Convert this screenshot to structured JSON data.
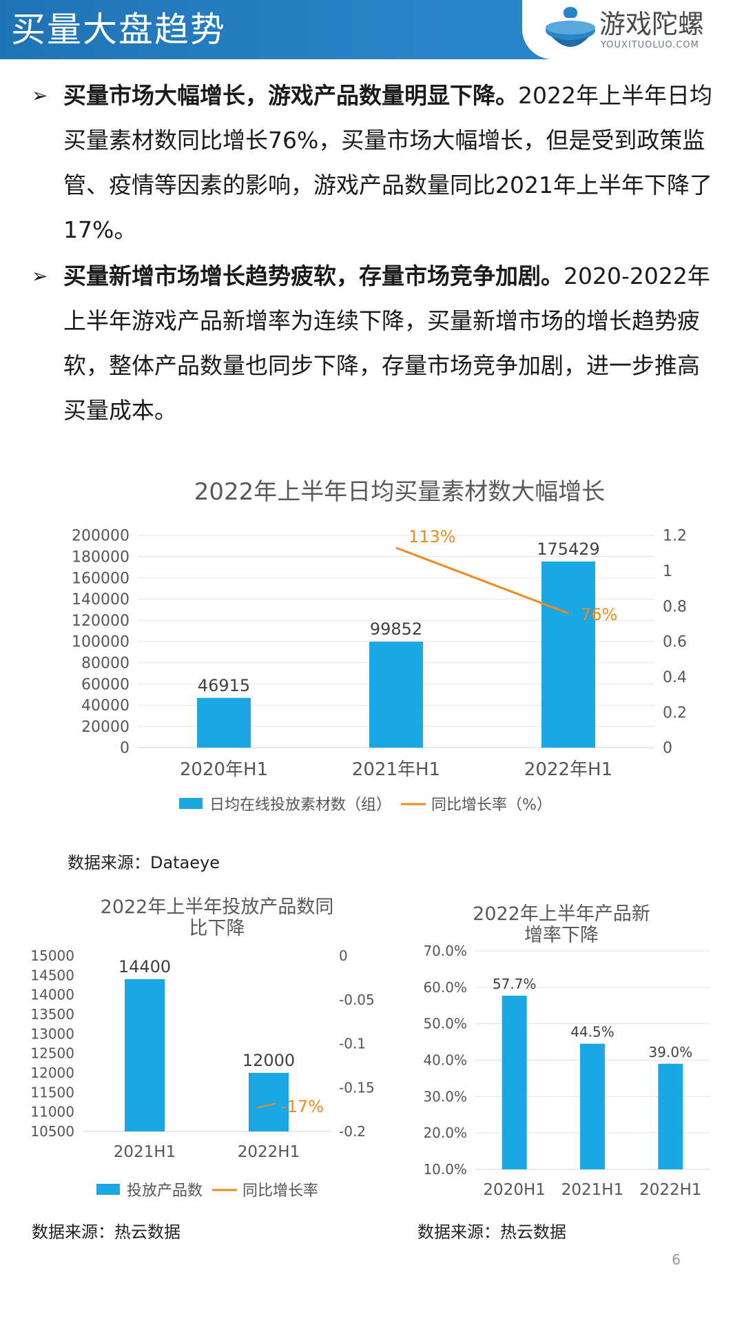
{
  "header": {
    "title": "买量大盘趋势",
    "logo_text": "游戏陀螺",
    "logo_sub": "YOUXITUOLUO.COM"
  },
  "bullets": [
    {
      "bold": "买量市场大幅增长，游戏产品数量明显下降。",
      "text": "2022年上半年日均买量素材数同比增长76%，买量市场大幅增长，但是受到政策监管、疫情等因素的影响，游戏产品数量同比2021年上半年下降了17%。"
    },
    {
      "bold": "买量新增市场增长趋势疲软，存量市场竞争加剧。",
      "text": "2020-2022年上半年游戏产品新增率为连续下降，买量新增市场的增长趋势疲软，整体产品数量也同步下降，存量市场竞争加剧，进一步推高买量成本。"
    }
  ],
  "sources": {
    "main": "数据来源：Dataeye",
    "left": "数据来源：热云数据",
    "right": "数据来源：热云数据"
  },
  "page_number": "6",
  "colors": {
    "bar": "#1aa7e3",
    "line": "#f08a1c",
    "header": "#2a85c8",
    "axis_text": "#555555"
  },
  "chart_data": [
    {
      "type": "bar",
      "title": "2022年上半年日均买量素材数大幅增长",
      "categories": [
        "2020年H1",
        "2021年H1",
        "2022年H1"
      ],
      "series": [
        {
          "name": "日均在线投放素材数（组）",
          "type": "bar",
          "axis": "left",
          "values": [
            46915,
            99852,
            175429
          ],
          "labels": [
            "46915",
            "99852",
            "175429"
          ]
        },
        {
          "name": "同比增长率（%）",
          "type": "line",
          "axis": "right",
          "values": [
            null,
            1.13,
            0.76
          ],
          "labels": [
            "",
            "113%",
            "76%"
          ]
        }
      ],
      "ylim_left": [
        0,
        200000
      ],
      "yticks_left": [
        "0",
        "20000",
        "40000",
        "60000",
        "80000",
        "100000",
        "120000",
        "140000",
        "160000",
        "180000",
        "200000"
      ],
      "ylim_right": [
        0,
        1.2
      ],
      "yticks_right": [
        "0",
        "0.2",
        "0.4",
        "0.6",
        "0.8",
        "1",
        "1.2"
      ],
      "legend": "bottom",
      "grid": true
    },
    {
      "type": "bar",
      "title": "2022年上半年投放产品数同比下降",
      "categories": [
        "2021H1",
        "2022H1"
      ],
      "series": [
        {
          "name": "投放产品数",
          "type": "bar",
          "axis": "left",
          "values": [
            14400,
            12000
          ],
          "labels": [
            "14400",
            "12000"
          ]
        },
        {
          "name": "同比增长率",
          "type": "line",
          "axis": "right",
          "values": [
            null,
            -0.17
          ],
          "labels": [
            "",
            "-17%"
          ]
        }
      ],
      "ylim_left": [
        10500,
        15000
      ],
      "yticks_left": [
        "10500",
        "11000",
        "11500",
        "12000",
        "12500",
        "13000",
        "13500",
        "14000",
        "14500",
        "15000"
      ],
      "ylim_right": [
        -0.2,
        0
      ],
      "yticks_right": [
        "-0.2",
        "-0.15",
        "-0.1",
        "-0.05",
        "0"
      ],
      "legend": "bottom",
      "grid": false
    },
    {
      "type": "bar",
      "title": "2022年上半年产品新增率下降",
      "categories": [
        "2020H1",
        "2021H1",
        "2022H1"
      ],
      "series": [
        {
          "name": "",
          "type": "bar",
          "axis": "left",
          "values": [
            57.7,
            44.5,
            39.0
          ],
          "labels": [
            "57.7%",
            "44.5%",
            "39.0%"
          ]
        }
      ],
      "ylim_left": [
        10,
        70
      ],
      "yticks_left": [
        "10.0%",
        "20.0%",
        "30.0%",
        "40.0%",
        "50.0%",
        "60.0%",
        "70.0%"
      ],
      "legend": "none",
      "grid": true
    }
  ]
}
